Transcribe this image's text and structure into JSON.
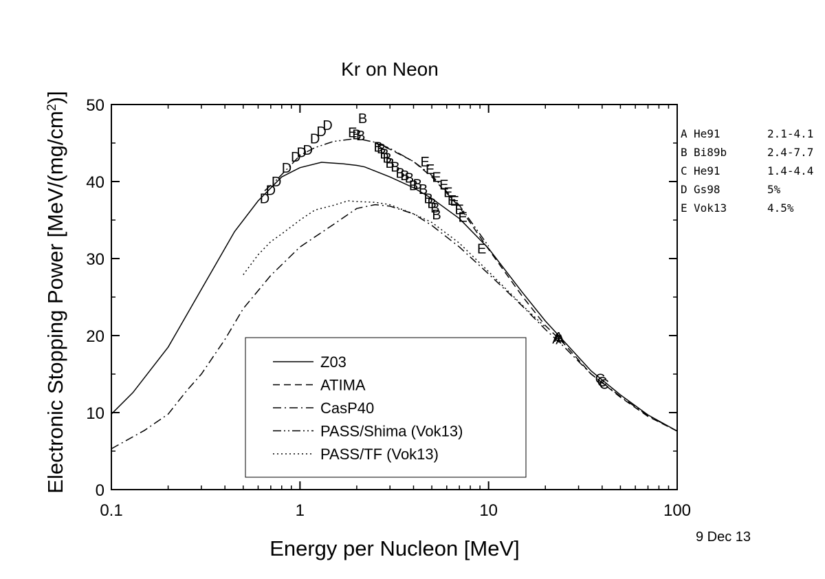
{
  "chart_data": {
    "type": "line",
    "title": "Kr on Neon",
    "xlabel": "Energy per Nucleon [MeV]",
    "ylabel_main": "Electronic Stopping Power [MeV/(mg/cm",
    "ylabel_sup": "2",
    "ylabel_end": ")]",
    "x_scale": "log",
    "xlim": [
      0.1,
      100
    ],
    "ylim": [
      0,
      50
    ],
    "x_ticks": [
      0.1,
      1,
      10,
      100
    ],
    "x_tick_labels": [
      "0.1",
      "1",
      "10",
      "100"
    ],
    "y_ticks": [
      0,
      10,
      20,
      30,
      40,
      50
    ],
    "y_tick_labels": [
      "0",
      "10",
      "20",
      "30",
      "40",
      "50"
    ],
    "grid": false,
    "legend_position": "bottom-center",
    "series": [
      {
        "name": "Z03",
        "style": "solid",
        "points": [
          [
            0.1,
            9.8
          ],
          [
            0.13,
            12.6
          ],
          [
            0.2,
            18.5
          ],
          [
            0.3,
            26
          ],
          [
            0.45,
            33.5
          ],
          [
            0.6,
            37.5
          ],
          [
            0.8,
            40.6
          ],
          [
            1.0,
            41.8
          ],
          [
            1.3,
            42.5
          ],
          [
            1.7,
            42.3
          ],
          [
            2.0,
            42.1
          ],
          [
            2.2,
            41.9
          ],
          [
            3.0,
            40.6
          ],
          [
            4.0,
            39.2
          ],
          [
            5.0,
            37.8
          ],
          [
            7.0,
            35.2
          ],
          [
            10.0,
            31.3
          ],
          [
            15.0,
            25.7
          ],
          [
            20.0,
            21.9
          ],
          [
            25.0,
            19.3
          ],
          [
            35.0,
            15.4
          ],
          [
            50.0,
            12.3
          ],
          [
            70.0,
            9.7
          ],
          [
            100.0,
            7.6
          ]
        ]
      },
      {
        "name": "ATIMA",
        "style": "dashed",
        "points": [
          [
            2.5,
            45.0
          ],
          [
            3.0,
            44.2
          ],
          [
            4.0,
            42.6
          ],
          [
            5.0,
            40.6
          ],
          [
            7.0,
            36.7
          ],
          [
            10.0,
            31.2
          ],
          [
            15.0,
            25.2
          ],
          [
            20.0,
            21.3
          ],
          [
            25.0,
            19.0
          ],
          [
            35.0,
            15.0
          ],
          [
            50.0,
            12.0
          ],
          [
            70.0,
            9.5
          ],
          [
            100.0,
            7.6
          ]
        ]
      },
      {
        "name": "CasP40",
        "style": "dashdot",
        "points": [
          [
            0.1,
            5.3
          ],
          [
            0.15,
            7.7
          ],
          [
            0.2,
            9.8
          ],
          [
            0.25,
            12.8
          ],
          [
            0.3,
            15.0
          ],
          [
            0.4,
            19.5
          ],
          [
            0.5,
            23.5
          ],
          [
            0.7,
            27.8
          ],
          [
            1.0,
            31.5
          ],
          [
            1.5,
            34.4
          ],
          [
            2.0,
            36.5
          ],
          [
            2.5,
            37.0
          ],
          [
            3.0,
            36.8
          ],
          [
            4.0,
            35.8
          ],
          [
            5.0,
            34.3
          ],
          [
            7.0,
            31.5
          ],
          [
            10.0,
            28.0
          ],
          [
            15.0,
            23.9
          ],
          [
            20.0,
            20.8
          ],
          [
            25.0,
            18.6
          ],
          [
            35.0,
            15.0
          ],
          [
            50.0,
            12.1
          ],
          [
            70.0,
            9.6
          ],
          [
            100.0,
            7.6
          ]
        ]
      },
      {
        "name": "PASS/Shima (Vok13)",
        "style": "dashdotdot",
        "points": [
          [
            0.65,
            38.8
          ],
          [
            0.75,
            40.2
          ],
          [
            0.9,
            42.2
          ],
          [
            1.0,
            43.4
          ],
          [
            1.2,
            44.4
          ],
          [
            1.5,
            45.2
          ],
          [
            2.0,
            45.6
          ],
          [
            2.5,
            45.1
          ],
          [
            3.0,
            44.3
          ],
          [
            4.0,
            42.6
          ],
          [
            5.0,
            40.8
          ],
          [
            7.0,
            36.9
          ],
          [
            10.0,
            31.6
          ]
        ]
      },
      {
        "name": "PASS/TF (Vok13)",
        "style": "dotted",
        "points": [
          [
            0.5,
            27.9
          ],
          [
            0.6,
            30.5
          ],
          [
            0.7,
            32.2
          ],
          [
            0.8,
            33.2
          ],
          [
            1.0,
            35.0
          ],
          [
            1.2,
            36.3
          ],
          [
            1.5,
            36.9
          ],
          [
            1.8,
            37.5
          ],
          [
            2.0,
            37.4
          ],
          [
            2.5,
            37.3
          ],
          [
            3.0,
            37.0
          ],
          [
            4.0,
            35.8
          ],
          [
            5.0,
            34.7
          ],
          [
            7.0,
            32.0
          ],
          [
            10.0,
            28.3
          ],
          [
            15.0,
            24.0
          ],
          [
            20.0,
            21.1
          ]
        ]
      }
    ],
    "markers": [
      {
        "label": "A",
        "points": [
          [
            23.0,
            19.6
          ],
          [
            23.5,
            19.8
          ],
          [
            24.0,
            19.5
          ]
        ]
      },
      {
        "label": "B",
        "points": [
          [
            2.0,
            46.1
          ],
          [
            2.1,
            46.0
          ],
          [
            2.15,
            48.2
          ],
          [
            2.6,
            44.5
          ],
          [
            2.7,
            44.3
          ],
          [
            2.8,
            43.6
          ],
          [
            2.9,
            43.1
          ],
          [
            3.0,
            42.4
          ],
          [
            3.2,
            41.9
          ],
          [
            3.4,
            41.1
          ],
          [
            3.6,
            40.8
          ],
          [
            3.8,
            40.5
          ],
          [
            4.0,
            39.5
          ],
          [
            4.2,
            39.7
          ],
          [
            4.5,
            39.0
          ],
          [
            4.8,
            37.8
          ],
          [
            5.0,
            37.2
          ],
          [
            5.2,
            36.6
          ],
          [
            5.3,
            35.7
          ]
        ]
      },
      {
        "label": "C",
        "points": [
          [
            39.0,
            14.4
          ],
          [
            40.0,
            14.0
          ],
          [
            41.0,
            13.7
          ]
        ]
      },
      {
        "label": "D",
        "points": [
          [
            0.65,
            37.8
          ],
          [
            0.7,
            38.9
          ],
          [
            0.75,
            40.0
          ],
          [
            0.85,
            41.8
          ],
          [
            0.95,
            43.2
          ],
          [
            1.02,
            43.8
          ],
          [
            1.1,
            44.1
          ],
          [
            1.2,
            45.6
          ],
          [
            1.3,
            46.5
          ],
          [
            1.4,
            47.3
          ]
        ]
      },
      {
        "label": "E",
        "points": [
          [
            1.9,
            46.4
          ],
          [
            4.6,
            42.6
          ],
          [
            4.9,
            41.6
          ],
          [
            5.3,
            40.6
          ],
          [
            5.8,
            39.6
          ],
          [
            6.1,
            38.6
          ],
          [
            6.4,
            37.6
          ],
          [
            6.6,
            37.5
          ],
          [
            7.0,
            36.4
          ],
          [
            7.3,
            35.4
          ],
          [
            9.2,
            31.3
          ]
        ]
      }
    ],
    "side_legend": [
      {
        "id": "A",
        "ref": "He91",
        "range": "2.1-4.1"
      },
      {
        "id": "B",
        "ref": "Bi89b",
        "range": "2.4-7.7"
      },
      {
        "id": "C",
        "ref": "He91",
        "range": "1.4-4.4"
      },
      {
        "id": "D",
        "ref": "Gs98",
        "range": "5%"
      },
      {
        "id": "E",
        "ref": "Vok13",
        "range": "4.5%"
      }
    ]
  },
  "date_stamp": "9 Dec 13"
}
